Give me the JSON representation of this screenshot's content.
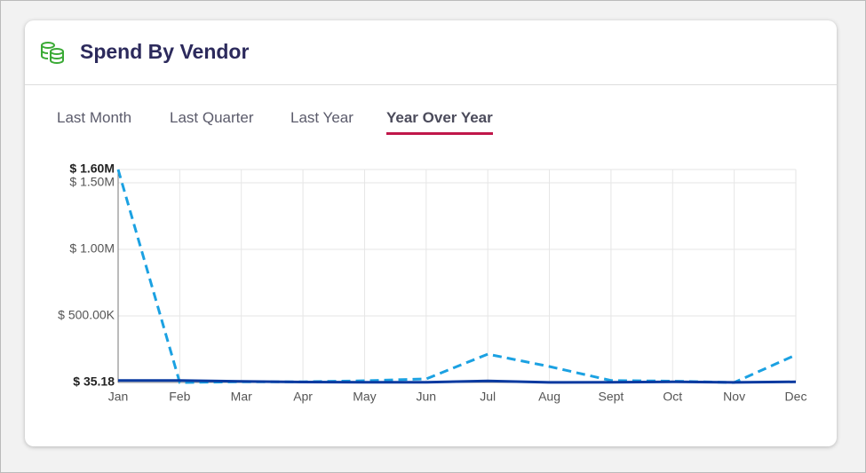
{
  "header": {
    "title": "Spend By Vendor"
  },
  "tabs": [
    {
      "label": "Last Month",
      "selected": false
    },
    {
      "label": "Last Quarter",
      "selected": false
    },
    {
      "label": "Last Year",
      "selected": false
    },
    {
      "label": "Year Over Year",
      "selected": true
    }
  ],
  "chart_data": {
    "type": "line",
    "categories": [
      "Jan",
      "Feb",
      "Mar",
      "Apr",
      "May",
      "Jun",
      "Jul",
      "Aug",
      "Sept",
      "Oct",
      "Nov",
      "Dec"
    ],
    "series": [
      {
        "color": "#1ba1e2",
        "dashed": true,
        "values": [
          1600000,
          0,
          5000,
          5000,
          13000,
          27000,
          213000,
          120000,
          15000,
          10000,
          0,
          207000
        ]
      },
      {
        "color": "#0a3aa0",
        "dashed": false,
        "values": [
          15000,
          15000,
          8000,
          3000,
          2000,
          2000,
          12000,
          1000,
          2000,
          5000,
          1000,
          5000
        ]
      }
    ],
    "ylim": [
      35.18,
      1600000
    ],
    "yticks": [
      {
        "value": 35.18,
        "label": "$ 35.18"
      },
      {
        "value": 500000,
        "label": "$ 500.00K"
      },
      {
        "value": 1000000,
        "label": "$ 1.00M"
      },
      {
        "value": 1500000,
        "label": "$ 1.50M"
      },
      {
        "value": 1600000,
        "label": "$ 1.60M"
      }
    ],
    "grid": true
  }
}
